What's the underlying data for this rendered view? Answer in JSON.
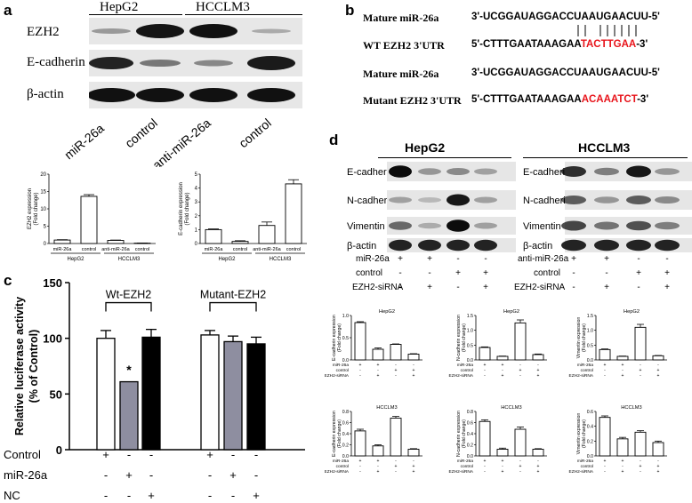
{
  "panels": {
    "a": "a",
    "b": "b",
    "c": "c",
    "d": "d"
  },
  "panel_a": {
    "cell_lines": [
      "HepG2",
      "HCCLM3"
    ],
    "rows": [
      "EZH2",
      "E-cadherin",
      "β-actin"
    ],
    "lanes": [
      "miR-26a",
      "control",
      "anti-miR-26a",
      "control"
    ],
    "chart_data": [
      {
        "type": "bar",
        "ylabel": "EZH2 expression (Fold change)",
        "categories": [
          "miR-26a",
          "control",
          "anti-miR-26a",
          "control"
        ],
        "groups": [
          "HepG2",
          "HCCLM3"
        ],
        "values": [
          1.0,
          13.6,
          0.9,
          0.1
        ],
        "errors": [
          0.1,
          0.5,
          0.1,
          0.05
        ],
        "ylim": [
          0,
          20
        ],
        "yticks": [
          "0",
          "5",
          "10",
          "15",
          "20"
        ]
      },
      {
        "type": "bar",
        "ylabel": "E-cadherin expression (Fold change)",
        "categories": [
          "miR-26a",
          "control",
          "anti-miR-26a",
          "control"
        ],
        "groups": [
          "HepG2",
          "HCCLM3"
        ],
        "values": [
          1.0,
          0.15,
          1.3,
          4.3
        ],
        "errors": [
          0.05,
          0.05,
          0.25,
          0.3
        ],
        "ylim": [
          0,
          5
        ],
        "yticks": [
          "0",
          "1",
          "2",
          "3",
          "4",
          "5"
        ]
      }
    ]
  },
  "panel_b": {
    "rows": [
      {
        "label": "Mature miR-26a",
        "seq_black": "3'-UCGGAUAGGACCUAAUGAACUU-5'",
        "seq_red": "",
        "seq_tail": ""
      },
      {
        "label": "WT EZH2 3'UTR",
        "seq_black": "5'-CTTTGAATAAAGAA",
        "seq_red": "TACTTGAA",
        "seq_tail": "-3'"
      },
      {
        "label": "Mature miR-26a",
        "seq_black": "3'-UCGGAUAGGACCUAAUGAACUU-5'",
        "seq_red": "",
        "seq_tail": ""
      },
      {
        "label": "Mutant EZH2 3'UTR",
        "seq_black": "5'-CTTTGAATAAAGAA",
        "seq_red": "ACAAATCT",
        "seq_tail": "-3'"
      }
    ]
  },
  "panel_c": {
    "chart_data": {
      "type": "bar",
      "ylabel": "Relative luciferase activity (% of Control)",
      "groups": [
        "Wt-EZH2",
        "Mutant-EZH2"
      ],
      "series": [
        {
          "name": "Control",
          "color": "#ffffff",
          "values": [
            100,
            103
          ]
        },
        {
          "name": "miR-26a",
          "color": "#8e8ea0",
          "values": [
            61,
            97
          ]
        },
        {
          "name": "NC",
          "color": "#000000",
          "values": [
            101,
            95
          ]
        }
      ],
      "errors": [
        [
          7,
          4
        ],
        [
          0,
          5
        ],
        [
          7,
          6
        ]
      ],
      "annotation": "*",
      "ylim": [
        0,
        150
      ],
      "yticks": [
        "0",
        "50",
        "100",
        "150"
      ],
      "row_labels": [
        "Control",
        "miR-26a",
        "NC"
      ],
      "signs": [
        [
          "+",
          "-",
          "-",
          "+",
          "-",
          "-"
        ],
        [
          "-",
          "+",
          "-",
          "-",
          "+",
          "-"
        ],
        [
          "-",
          "-",
          "+",
          "-",
          "-",
          "+"
        ]
      ]
    }
  },
  "panel_d": {
    "cell_lines": [
      "HepG2",
      "HCCLM3"
    ],
    "rows": [
      "E-cadherin",
      "N-cadherin",
      "Vimentin",
      "β-actin"
    ],
    "cond_labels_left": [
      "miR-26a",
      "control",
      "EZH2-siRNA"
    ],
    "cond_labels_right": [
      "anti-miR-26a",
      "control",
      "EZH2-siRNA"
    ],
    "signs": [
      [
        "+",
        "+",
        "-",
        "-"
      ],
      [
        "-",
        "-",
        "+",
        "+"
      ],
      [
        "-",
        "+",
        "-",
        "+"
      ]
    ],
    "chart_data": [
      {
        "type": "bar",
        "title": "HepG2",
        "ylabel": "E-cadherin expression (Fold change)",
        "values": [
          0.84,
          0.24,
          0.35,
          0.13
        ],
        "errors": [
          0.02,
          0.03,
          0.01,
          0.01
        ],
        "ylim": [
          0,
          1.0
        ],
        "yticks": [
          "0.0",
          "0.5",
          "1.0"
        ]
      },
      {
        "type": "bar",
        "title": "HepG2",
        "ylabel": "N-cadherin expression (Fold change)",
        "values": [
          0.42,
          0.12,
          1.25,
          0.18
        ],
        "errors": [
          0.02,
          0.01,
          0.1,
          0.02
        ],
        "ylim": [
          0,
          1.5
        ],
        "yticks": [
          "0.0",
          "0.5",
          "1.0",
          "1.5"
        ]
      },
      {
        "type": "bar",
        "title": "HepG2",
        "ylabel": "Vimentin expression (Fold change)",
        "values": [
          0.35,
          0.12,
          1.1,
          0.14
        ],
        "errors": [
          0.02,
          0.01,
          0.1,
          0.01
        ],
        "ylim": [
          0,
          1.5
        ],
        "yticks": [
          "0.0",
          "0.5",
          "1.0",
          "1.5"
        ]
      },
      {
        "type": "bar",
        "title": "HCCLM3",
        "ylabel": "E-cadherin expression (Fold change)",
        "values": [
          0.45,
          0.18,
          0.68,
          0.12
        ],
        "errors": [
          0.03,
          0.02,
          0.03,
          0.01
        ],
        "ylim": [
          0,
          0.8
        ],
        "yticks": [
          "0.0",
          "0.2",
          "0.4",
          "0.6",
          "0.8"
        ]
      },
      {
        "type": "bar",
        "title": "HCCLM3",
        "ylabel": "N-cadherin expression (Fold change)",
        "values": [
          0.62,
          0.12,
          0.48,
          0.12
        ],
        "errors": [
          0.03,
          0.02,
          0.04,
          0.01
        ],
        "ylim": [
          0,
          0.8
        ],
        "yticks": [
          "0.0",
          "0.2",
          "0.4",
          "0.6",
          "0.8"
        ]
      },
      {
        "type": "bar",
        "title": "HCCLM3",
        "ylabel": "Vimentin expression (Fold change)",
        "values": [
          0.52,
          0.23,
          0.32,
          0.18
        ],
        "errors": [
          0.02,
          0.02,
          0.02,
          0.02
        ],
        "ylim": [
          0,
          0.6
        ],
        "yticks": [
          "0.0",
          "0.2",
          "0.4",
          "0.6"
        ]
      }
    ],
    "mini_row_labels": [
      "miR-26a",
      "control",
      "EZH2-siRNA"
    ],
    "mini_row_labels_hcc": [
      "miR-26a",
      "control",
      "EZH2-siRNA"
    ],
    "mini_signs": [
      [
        "+",
        "+",
        "-",
        "-"
      ],
      [
        "-",
        "-",
        "+",
        "+"
      ],
      [
        "-",
        "+",
        "-",
        "+"
      ]
    ]
  }
}
